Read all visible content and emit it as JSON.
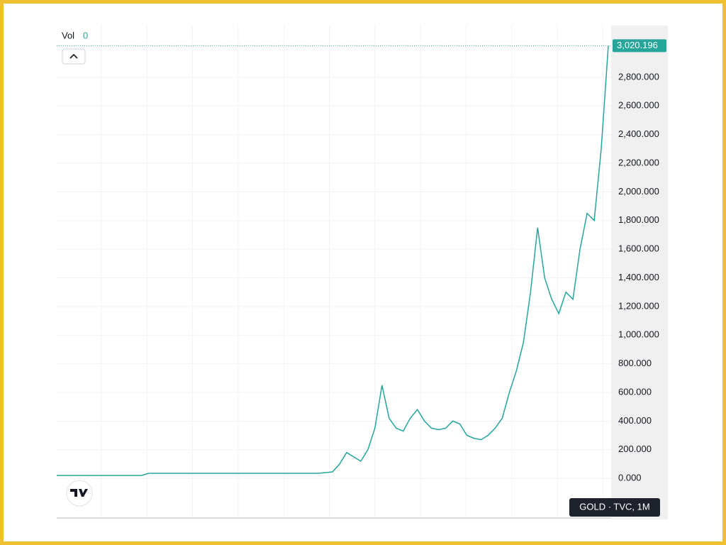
{
  "header": {
    "vol_label": "Vol",
    "vol_value": "0",
    "symbol": "GOLD · TVC, 1M"
  },
  "chart_data": {
    "type": "line",
    "color": "#26a69a",
    "series": [
      {
        "color": "#26a69a",
        "values": [
          20,
          20,
          20,
          20,
          20,
          20,
          20,
          20,
          20,
          20,
          20,
          20,
          20,
          35,
          35,
          35,
          35,
          35,
          35,
          35,
          35,
          35,
          35,
          35,
          35,
          35,
          35,
          35,
          35,
          35,
          35,
          35,
          35,
          35,
          35,
          35,
          35,
          35,
          40,
          45,
          100,
          180,
          150,
          120,
          200,
          350,
          650,
          420,
          350,
          330,
          420,
          480,
          400,
          350,
          340,
          350,
          400,
          380,
          300,
          280,
          270,
          300,
          350,
          420,
          600,
          750,
          950,
          1300,
          1750,
          1400,
          1250,
          1150,
          1300,
          1250,
          1600,
          1850,
          1800,
          2300,
          3020.196
        ]
      }
    ],
    "ylim": [
      -277,
      3161
    ],
    "yticks": [
      {
        "value": 0,
        "label": "0.000"
      },
      {
        "value": 200,
        "label": "200.000"
      },
      {
        "value": 400,
        "label": "400.000"
      },
      {
        "value": 600,
        "label": "600.000"
      },
      {
        "value": 800,
        "label": "800.000"
      },
      {
        "value": 1000,
        "label": "1,000.000"
      },
      {
        "value": 1200,
        "label": "1,200.000"
      },
      {
        "value": 1400,
        "label": "1,400.000"
      },
      {
        "value": 1600,
        "label": "1,600.000"
      },
      {
        "value": 1800,
        "label": "1,800.000"
      },
      {
        "value": 2000,
        "label": "2,000.000"
      },
      {
        "value": 2200,
        "label": "2,200.000"
      },
      {
        "value": 2400,
        "label": "2,400.000"
      },
      {
        "value": 2600,
        "label": "2,600.000"
      },
      {
        "value": 2800,
        "label": "2,800.000"
      }
    ],
    "last_price": {
      "value": 3020.196,
      "label": "3,020.196"
    },
    "grid": true
  }
}
